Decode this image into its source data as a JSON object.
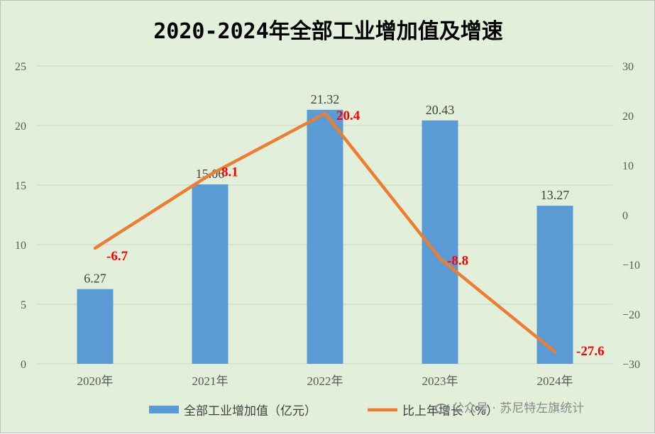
{
  "chart_data": {
    "type": "bar+line",
    "title": "2020-2024年全部工业增加值及增速",
    "categories": [
      "2020年",
      "2021年",
      "2022年",
      "2023年",
      "2024年"
    ],
    "series": [
      {
        "name": "全部工业增加值（亿元）",
        "type": "bar",
        "axis": "left",
        "values": [
          6.27,
          15.06,
          21.32,
          20.43,
          13.27
        ],
        "labels": [
          "6.27",
          "15.06",
          "21.32",
          "20.43",
          "13.27"
        ],
        "color": "#5b9bd5"
      },
      {
        "name": "比上年增长（%）",
        "type": "line",
        "axis": "right",
        "values": [
          -6.7,
          8.1,
          20.4,
          -8.8,
          -27.6
        ],
        "labels": [
          "-6.7",
          "8.1",
          "20.4",
          "-8.8",
          "-27.6"
        ],
        "color": "#ed7d31",
        "label_color": "#ff0000"
      }
    ],
    "y_left": {
      "min": 0,
      "max": 25,
      "ticks": [
        "0",
        "5",
        "10",
        "15",
        "20",
        "25"
      ]
    },
    "y_right": {
      "min": -30,
      "max": 30,
      "ticks": [
        "−30",
        "−20",
        "−10",
        "0",
        "10",
        "20",
        "30"
      ]
    },
    "grid": true,
    "legend": "bottom"
  },
  "watermark": {
    "text": "公众号 · 苏尼特左旗统计"
  }
}
